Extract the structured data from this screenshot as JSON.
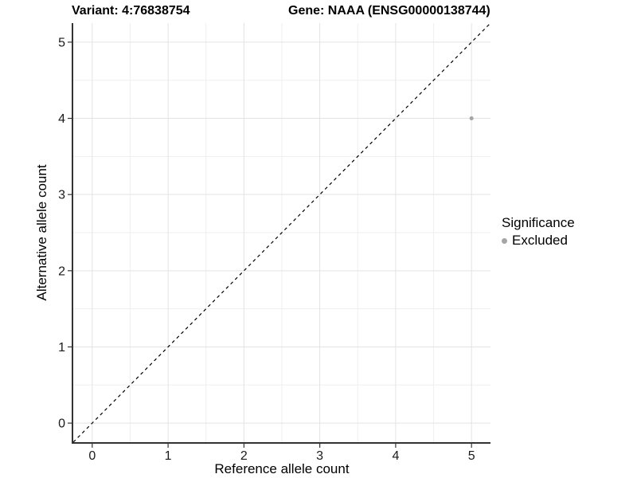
{
  "titles": {
    "variant": "Variant: 4:76838754",
    "gene": "Gene: NAAA (ENSG00000138744)"
  },
  "chart_data": {
    "type": "scatter",
    "title_left": "Variant: 4:76838754",
    "title_right": "Gene: NAAA (ENSG00000138744)",
    "xlabel": "Reference allele count",
    "ylabel": "Alternative allele count",
    "xlim": [
      -0.25,
      5.25
    ],
    "ylim": [
      -0.25,
      5.25
    ],
    "xticks": [
      0,
      1,
      2,
      3,
      4,
      5
    ],
    "yticks": [
      0,
      1,
      2,
      3,
      4,
      5
    ],
    "minor_gridlines": [
      0.5,
      1.5,
      2.5,
      3.5,
      4.5
    ],
    "grid": "on",
    "identity_line": {
      "style": "dashed",
      "slope": 1,
      "intercept": 0
    },
    "series": [
      {
        "name": "Excluded",
        "marker": "circle",
        "color": "#a5a5a5",
        "points": [
          {
            "x": 5,
            "y": 4
          }
        ]
      }
    ],
    "legend": {
      "title": "Significance",
      "position": "right",
      "entries": [
        {
          "label": "Excluded",
          "color": "#a5a5a5",
          "marker": "circle"
        }
      ]
    }
  },
  "colors": {
    "background": "#ffffff",
    "panel_background": "#ffffff",
    "axis_line": "#333333",
    "tick_mark": "#333333",
    "tick_label": "#1a1a1a",
    "grid_major": "#e3e3e3",
    "grid_minor": "#efefef",
    "identity_line": "#000000",
    "point": "#a5a5a5"
  }
}
